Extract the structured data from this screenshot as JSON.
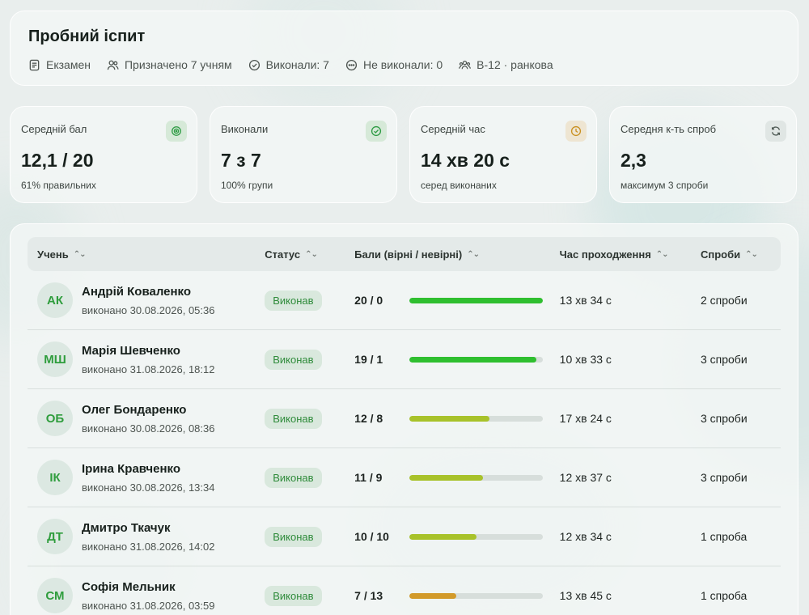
{
  "header": {
    "title": "Пробний іспит",
    "meta": [
      {
        "icon": "document-icon",
        "text": "Екзамен"
      },
      {
        "icon": "users-icon",
        "text": "Призначено 7 учням"
      },
      {
        "icon": "check-circle-icon",
        "text": "Виконали: 7"
      },
      {
        "icon": "dots-circle-icon",
        "text": "Не виконали: 0"
      },
      {
        "icon": "group-icon",
        "text": "В-12 · ранкова"
      }
    ]
  },
  "stats": [
    {
      "label": "Середній бал",
      "value": "12,1 / 20",
      "sub": "61% правильних",
      "icon": "target-icon",
      "icon_color": "#2e9b44",
      "icon_bg": "#d6e9d8"
    },
    {
      "label": "Виконали",
      "value": "7 з 7",
      "sub": "100% групи",
      "icon": "check-circle-icon",
      "icon_color": "#2e9b44",
      "icon_bg": "#d6e9d8"
    },
    {
      "label": "Середній час",
      "value": "14 хв 20 с",
      "sub": "серед виконаних",
      "icon": "clock-icon",
      "icon_color": "#c99020",
      "icon_bg": "#eee5d2"
    },
    {
      "label": "Середня к-ть спроб",
      "value": "2,3",
      "sub": "максимум 3 спроби",
      "icon": "refresh-icon",
      "icon_color": "#4f5a55",
      "icon_bg": "#e0e6e4"
    }
  ],
  "table": {
    "columns": [
      "Учень",
      "Статус",
      "Бали (вірні / невірні)",
      "Час проходження",
      "Спроби"
    ],
    "rows": [
      {
        "initials": "АК",
        "name": "Андрій Коваленко",
        "date": "виконано 30.08.2026, 05:36",
        "status": "Виконав",
        "score": "20 / 0",
        "fraction": 1.0,
        "bar_color": "#2fbf2f",
        "time": "13 хв 34 с",
        "attempts": "2 спроби"
      },
      {
        "initials": "МШ",
        "name": "Марія Шевченко",
        "date": "виконано 31.08.2026, 18:12",
        "status": "Виконав",
        "score": "19 / 1",
        "fraction": 0.95,
        "bar_color": "#2fbf2f",
        "time": "10 хв 33 с",
        "attempts": "3 спроби"
      },
      {
        "initials": "ОБ",
        "name": "Олег Бондаренко",
        "date": "виконано 30.08.2026, 08:36",
        "status": "Виконав",
        "score": "12 / 8",
        "fraction": 0.6,
        "bar_color": "#a8c22a",
        "time": "17 хв 24 с",
        "attempts": "3 спроби"
      },
      {
        "initials": "ІК",
        "name": "Ірина Кравченко",
        "date": "виконано 30.08.2026, 13:34",
        "status": "Виконав",
        "score": "11 / 9",
        "fraction": 0.55,
        "bar_color": "#a8c22a",
        "time": "12 хв 37 с",
        "attempts": "3 спроби"
      },
      {
        "initials": "ДТ",
        "name": "Дмитро Ткачук",
        "date": "виконано 31.08.2026, 14:02",
        "status": "Виконав",
        "score": "10 / 10",
        "fraction": 0.5,
        "bar_color": "#a8c22a",
        "time": "12 хв 34 с",
        "attempts": "1 спроба"
      },
      {
        "initials": "СМ",
        "name": "Софія Мельник",
        "date": "виконано 31.08.2026, 03:59",
        "status": "Виконав",
        "score": "7 / 13",
        "fraction": 0.35,
        "bar_color": "#d29a2a",
        "time": "13 хв 45 с",
        "attempts": "1 спроба"
      }
    ]
  }
}
